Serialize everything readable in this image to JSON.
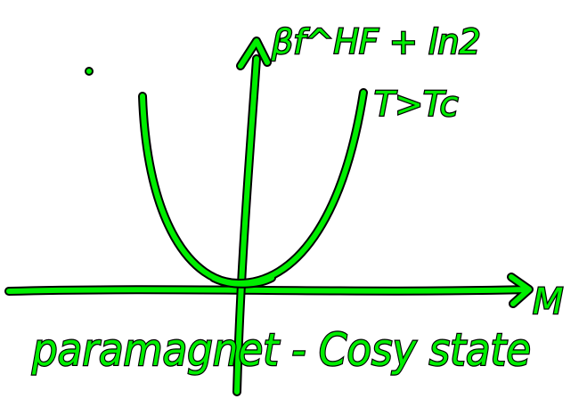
{
  "labels": {
    "y_axis": "βf^HF + ln2",
    "curve": "T>Tc",
    "x_axis": "M",
    "caption": "paramagnet - Cosy state"
  }
}
